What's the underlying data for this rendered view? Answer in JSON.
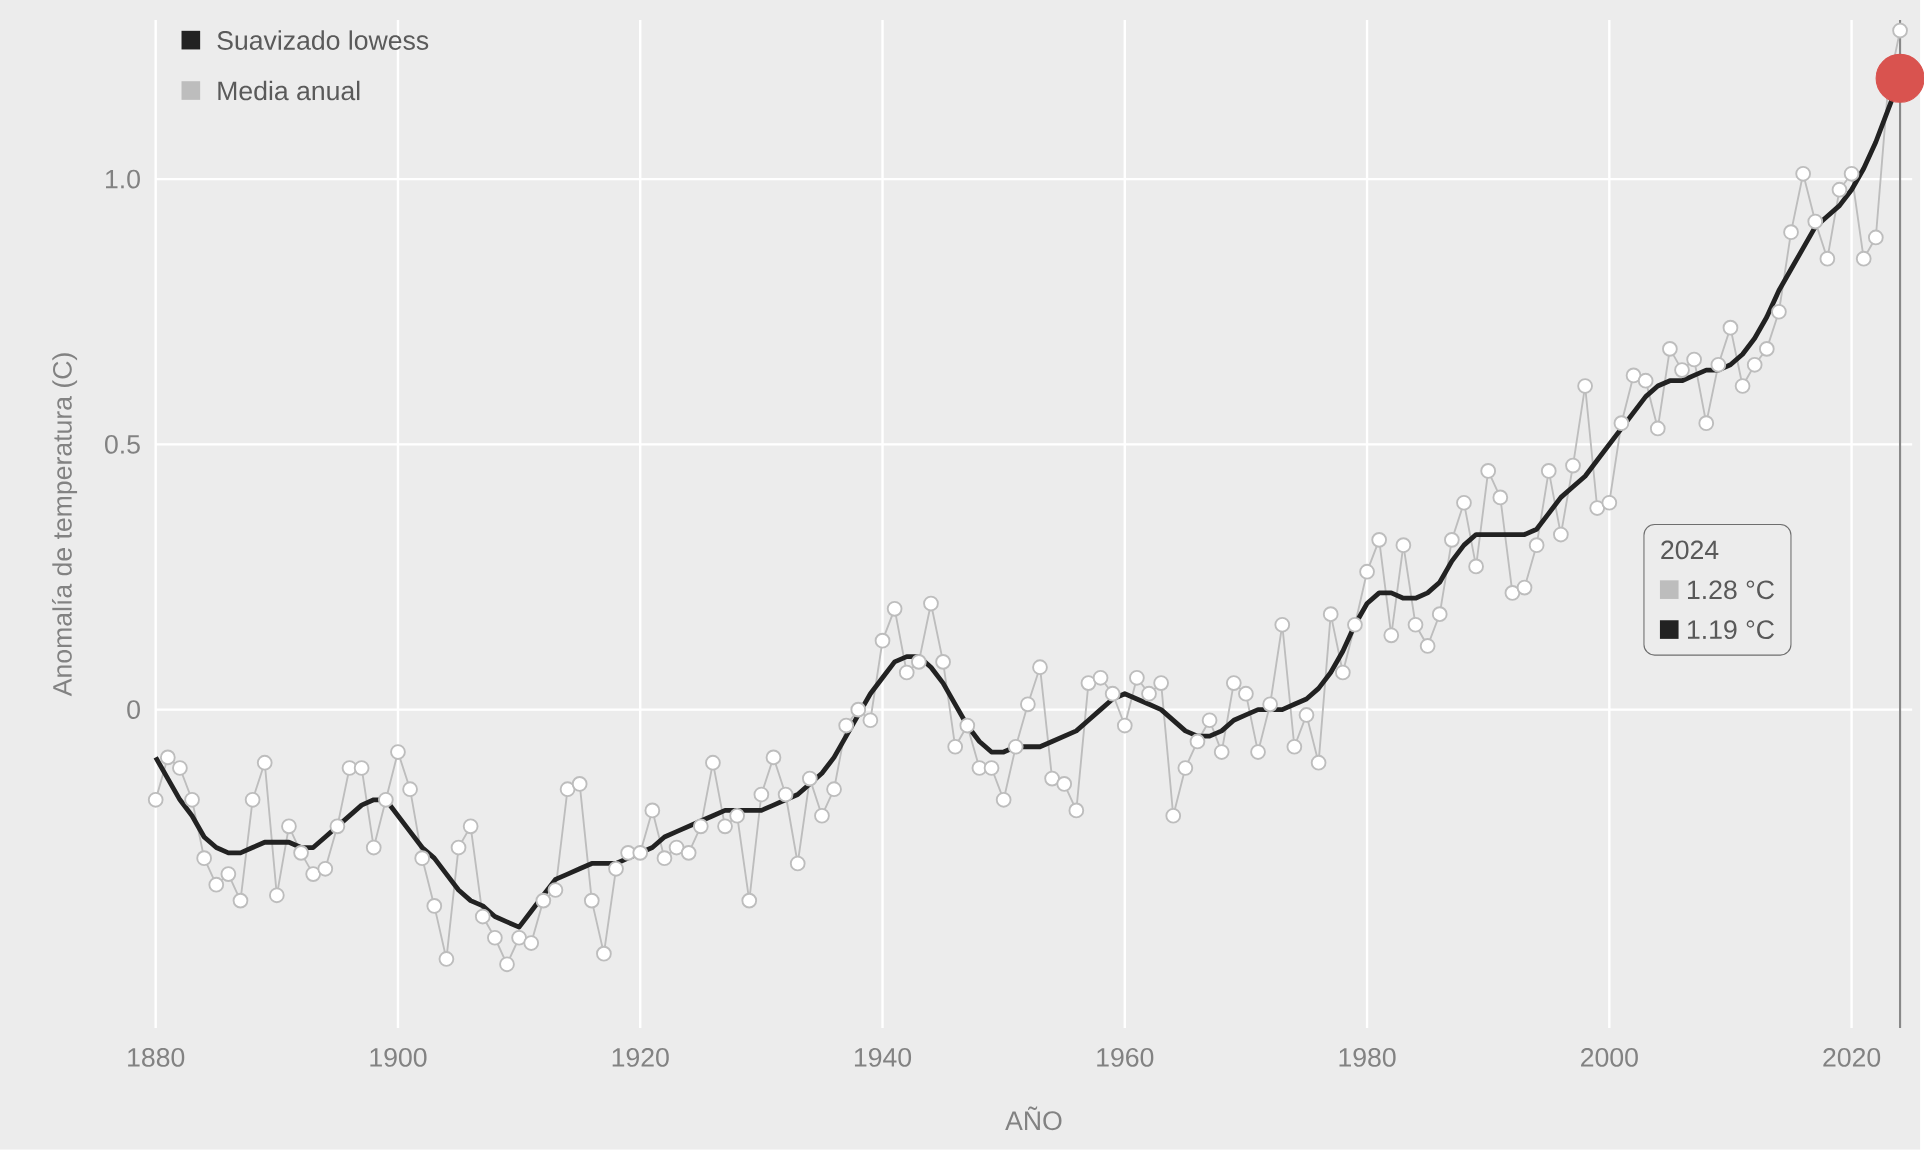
{
  "chart_data": {
    "type": "line",
    "xlabel": "AÑO",
    "ylabel": "Anomalía de temperatura (C)",
    "x": [
      1880,
      1881,
      1882,
      1883,
      1884,
      1885,
      1886,
      1887,
      1888,
      1889,
      1890,
      1891,
      1892,
      1893,
      1894,
      1895,
      1896,
      1897,
      1898,
      1899,
      1900,
      1901,
      1902,
      1903,
      1904,
      1905,
      1906,
      1907,
      1908,
      1909,
      1910,
      1911,
      1912,
      1913,
      1914,
      1915,
      1916,
      1917,
      1918,
      1919,
      1920,
      1921,
      1922,
      1923,
      1924,
      1925,
      1926,
      1927,
      1928,
      1929,
      1930,
      1931,
      1932,
      1933,
      1934,
      1935,
      1936,
      1937,
      1938,
      1939,
      1940,
      1941,
      1942,
      1943,
      1944,
      1945,
      1946,
      1947,
      1948,
      1949,
      1950,
      1951,
      1952,
      1953,
      1954,
      1955,
      1956,
      1957,
      1958,
      1959,
      1960,
      1961,
      1962,
      1963,
      1964,
      1965,
      1966,
      1967,
      1968,
      1969,
      1970,
      1971,
      1972,
      1973,
      1974,
      1975,
      1976,
      1977,
      1978,
      1979,
      1980,
      1981,
      1982,
      1983,
      1984,
      1985,
      1986,
      1987,
      1988,
      1989,
      1990,
      1991,
      1992,
      1993,
      1994,
      1995,
      1996,
      1997,
      1998,
      1999,
      2000,
      2001,
      2002,
      2003,
      2004,
      2005,
      2006,
      2007,
      2008,
      2009,
      2010,
      2011,
      2012,
      2013,
      2014,
      2015,
      2016,
      2017,
      2018,
      2019,
      2020,
      2021,
      2022,
      2023,
      2024
    ],
    "series": [
      {
        "name": "Suavizado lowess",
        "color": "#222222",
        "marker": "none",
        "values": [
          -0.09,
          -0.13,
          -0.17,
          -0.2,
          -0.24,
          -0.26,
          -0.27,
          -0.27,
          -0.26,
          -0.25,
          -0.25,
          -0.25,
          -0.26,
          -0.26,
          -0.24,
          -0.22,
          -0.2,
          -0.18,
          -0.17,
          -0.17,
          -0.2,
          -0.23,
          -0.26,
          -0.28,
          -0.31,
          -0.34,
          -0.36,
          -0.37,
          -0.39,
          -0.4,
          -0.41,
          -0.38,
          -0.35,
          -0.32,
          -0.31,
          -0.3,
          -0.29,
          -0.29,
          -0.29,
          -0.28,
          -0.27,
          -0.26,
          -0.24,
          -0.23,
          -0.22,
          -0.21,
          -0.2,
          -0.19,
          -0.19,
          -0.19,
          -0.19,
          -0.18,
          -0.17,
          -0.16,
          -0.14,
          -0.12,
          -0.09,
          -0.05,
          -0.01,
          0.03,
          0.06,
          0.09,
          0.1,
          0.1,
          0.08,
          0.05,
          0.01,
          -0.03,
          -0.06,
          -0.08,
          -0.08,
          -0.07,
          -0.07,
          -0.07,
          -0.06,
          -0.05,
          -0.04,
          -0.02,
          0.0,
          0.02,
          0.03,
          0.02,
          0.01,
          0.0,
          -0.02,
          -0.04,
          -0.05,
          -0.05,
          -0.04,
          -0.02,
          -0.01,
          0.0,
          0.0,
          0.0,
          0.01,
          0.02,
          0.04,
          0.07,
          0.11,
          0.16,
          0.2,
          0.22,
          0.22,
          0.21,
          0.21,
          0.22,
          0.24,
          0.28,
          0.31,
          0.33,
          0.33,
          0.33,
          0.33,
          0.33,
          0.34,
          0.37,
          0.4,
          0.42,
          0.44,
          0.47,
          0.5,
          0.53,
          0.56,
          0.59,
          0.61,
          0.62,
          0.62,
          0.63,
          0.64,
          0.64,
          0.65,
          0.67,
          0.7,
          0.74,
          0.79,
          0.83,
          0.87,
          0.91,
          0.93,
          0.95,
          0.98,
          1.02,
          1.07,
          1.13,
          1.19
        ]
      },
      {
        "name": "Media anual",
        "color": "#bdbdbd",
        "marker": "circle",
        "values": [
          -0.17,
          -0.09,
          -0.11,
          -0.17,
          -0.28,
          -0.33,
          -0.31,
          -0.36,
          -0.17,
          -0.1,
          -0.35,
          -0.22,
          -0.27,
          -0.31,
          -0.3,
          -0.22,
          -0.11,
          -0.11,
          -0.26,
          -0.17,
          -0.08,
          -0.15,
          -0.28,
          -0.37,
          -0.47,
          -0.26,
          -0.22,
          -0.39,
          -0.43,
          -0.48,
          -0.43,
          -0.44,
          -0.36,
          -0.34,
          -0.15,
          -0.14,
          -0.36,
          -0.46,
          -0.3,
          -0.27,
          -0.27,
          -0.19,
          -0.28,
          -0.26,
          -0.27,
          -0.22,
          -0.1,
          -0.22,
          -0.2,
          -0.36,
          -0.16,
          -0.09,
          -0.16,
          -0.29,
          -0.13,
          -0.2,
          -0.15,
          -0.03,
          0.0,
          -0.02,
          0.13,
          0.19,
          0.07,
          0.09,
          0.2,
          0.09,
          -0.07,
          -0.03,
          -0.11,
          -0.11,
          -0.17,
          -0.07,
          0.01,
          0.08,
          -0.13,
          -0.14,
          -0.19,
          0.05,
          0.06,
          0.03,
          -0.03,
          0.06,
          0.03,
          0.05,
          -0.2,
          -0.11,
          -0.06,
          -0.02,
          -0.08,
          0.05,
          0.03,
          -0.08,
          0.01,
          0.16,
          -0.07,
          -0.01,
          -0.1,
          0.18,
          0.07,
          0.16,
          0.26,
          0.32,
          0.14,
          0.31,
          0.16,
          0.12,
          0.18,
          0.32,
          0.39,
          0.27,
          0.45,
          0.4,
          0.22,
          0.23,
          0.31,
          0.45,
          0.33,
          0.46,
          0.61,
          0.38,
          0.39,
          0.54,
          0.63,
          0.62,
          0.53,
          0.68,
          0.64,
          0.66,
          0.54,
          0.65,
          0.72,
          0.61,
          0.65,
          0.68,
          0.75,
          0.9,
          1.01,
          0.92,
          0.85,
          0.98,
          1.01,
          0.85,
          0.89,
          1.17,
          1.28
        ]
      },
      {
        "type": "scatter",
        "color": "#d9534f",
        "marker": "circle",
        "x": [
          2024
        ],
        "values": [
          1.19
        ]
      }
    ],
    "xlim": [
      1880,
      2025
    ],
    "ylim": [
      -0.6,
      1.3
    ],
    "xticks": [
      1880,
      1900,
      1920,
      1940,
      1960,
      1980,
      2000,
      2020
    ],
    "yticks": [
      0,
      0.5,
      {
        "value": 1.0,
        "label": "1.0"
      }
    ],
    "grid": true,
    "legend": "top left",
    "ref_lines": [
      {
        "axis": "x",
        "value": 2024,
        "color": "#888888"
      }
    ],
    "annotations": [
      "2024",
      "1.28 °C",
      "1.19 °C"
    ]
  }
}
